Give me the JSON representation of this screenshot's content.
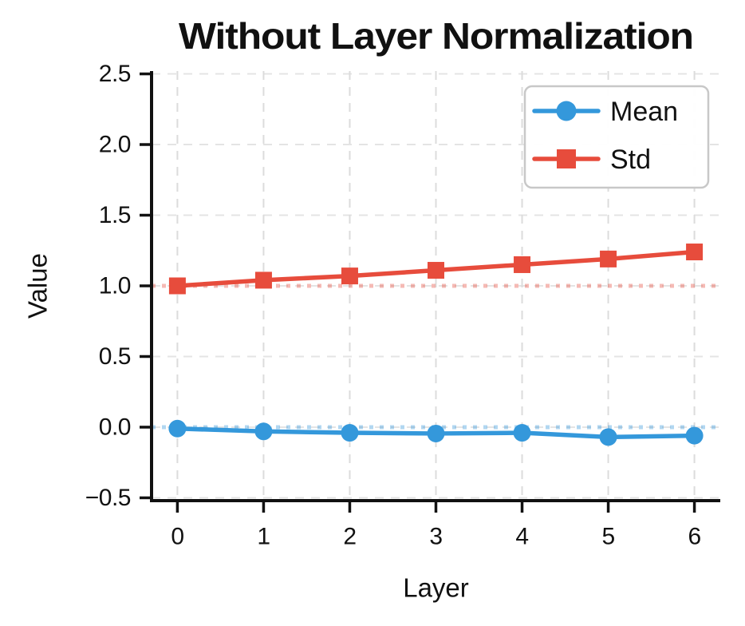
{
  "window": {
    "title": "Without Layer Normalization"
  },
  "chart_data": {
    "type": "line",
    "title": "Without Layer Normalization",
    "xlabel": "Layer",
    "ylabel": "Value",
    "x": [
      0,
      1,
      2,
      3,
      4,
      5,
      6
    ],
    "xtick_labels": [
      "0",
      "1",
      "2",
      "3",
      "4",
      "5",
      "6"
    ],
    "ytick_values": [
      -0.5,
      0.0,
      0.5,
      1.0,
      1.5,
      2.0,
      2.5
    ],
    "ytick_labels": [
      "−0.5",
      "0.0",
      "0.5",
      "1.0",
      "1.5",
      "2.0",
      "2.5"
    ],
    "xlim": [
      -0.3,
      6.3
    ],
    "ylim": [
      -0.52,
      2.52
    ],
    "grid": true,
    "grid_style": "dashed",
    "series": [
      {
        "name": "Mean",
        "color": "#3498db",
        "marker": "circle",
        "values": [
          -0.01,
          -0.03,
          -0.04,
          -0.045,
          -0.04,
          -0.07,
          -0.06
        ]
      },
      {
        "name": "Std",
        "color": "#e74c3c",
        "marker": "square",
        "values": [
          1.0,
          1.04,
          1.07,
          1.11,
          1.15,
          1.19,
          1.24
        ]
      }
    ],
    "reference_lines": [
      {
        "y": 1.0,
        "color": "#e74c3c",
        "style": "dotted",
        "opacity": 0.38
      },
      {
        "y": 0.0,
        "color": "#3498db",
        "style": "dotted",
        "opacity": 0.38
      }
    ],
    "legend": {
      "position": "upper-right",
      "entries": [
        "Mean",
        "Std"
      ]
    },
    "colors": {
      "background": "#ffffff",
      "axis": "#111111",
      "grid": "#dcdcdc",
      "legend_border": "#c8c8c8",
      "text": "#111111"
    }
  }
}
